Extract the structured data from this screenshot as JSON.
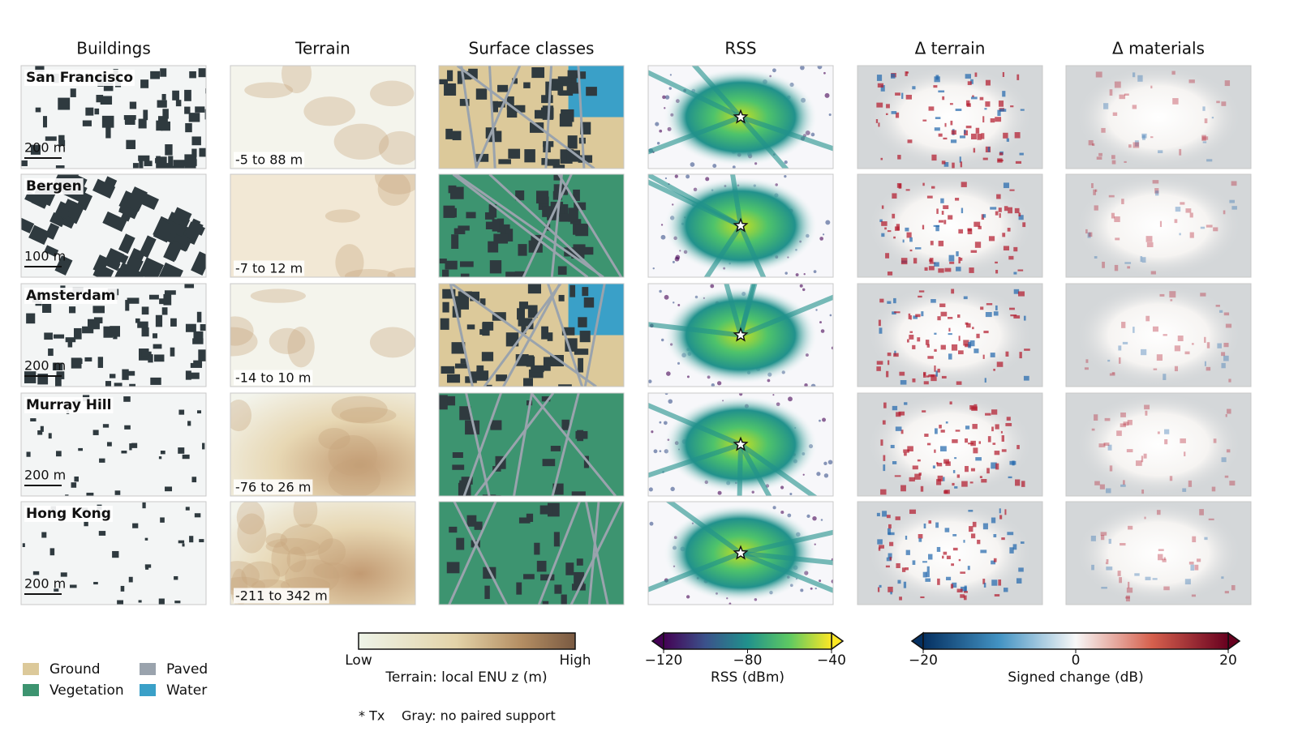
{
  "columns": [
    "Buildings",
    "Terrain",
    "Surface classes",
    "RSS",
    "Δ terrain",
    "Δ materials"
  ],
  "rows": [
    {
      "city": "San Francisco",
      "scale": "200 m",
      "terrain_range": "-5 to 88 m"
    },
    {
      "city": "Bergen",
      "scale": "100 m",
      "terrain_range": "-7 to 12 m"
    },
    {
      "city": "Amsterdam",
      "scale": "200 m",
      "terrain_range": "-14 to 10 m"
    },
    {
      "city": "Murray Hill",
      "scale": "200 m",
      "terrain_range": "-76 to 26 m"
    },
    {
      "city": "Hong Kong",
      "scale": "200 m",
      "terrain_range": "-211 to 342 m"
    }
  ],
  "legend": [
    {
      "name": "Ground",
      "color": "#dcc99a"
    },
    {
      "name": "Vegetation",
      "color": "#3d9470"
    },
    {
      "name": "Paved",
      "color": "#9aa3ad"
    },
    {
      "name": "Water",
      "color": "#3aa0c8"
    }
  ],
  "colorbars": {
    "terrain": {
      "low": "Low",
      "high": "High",
      "label": "Terrain: local ENU z (m)"
    },
    "rss": {
      "lim": [
        -120,
        -40
      ],
      "ticks": [
        {
          "value": -120,
          "label": "−120"
        },
        {
          "value": -80,
          "label": "−80"
        },
        {
          "value": -40,
          "label": "−40"
        }
      ],
      "label": "RSS (dBm)"
    },
    "change": {
      "lim": [
        -20,
        20
      ],
      "ticks": [
        {
          "value": -20,
          "label": "−20"
        },
        0,
        20
      ],
      "label": "Signed change (dB)"
    }
  },
  "footnotes": [
    "* Tx",
    "Gray: no paired support"
  ]
}
